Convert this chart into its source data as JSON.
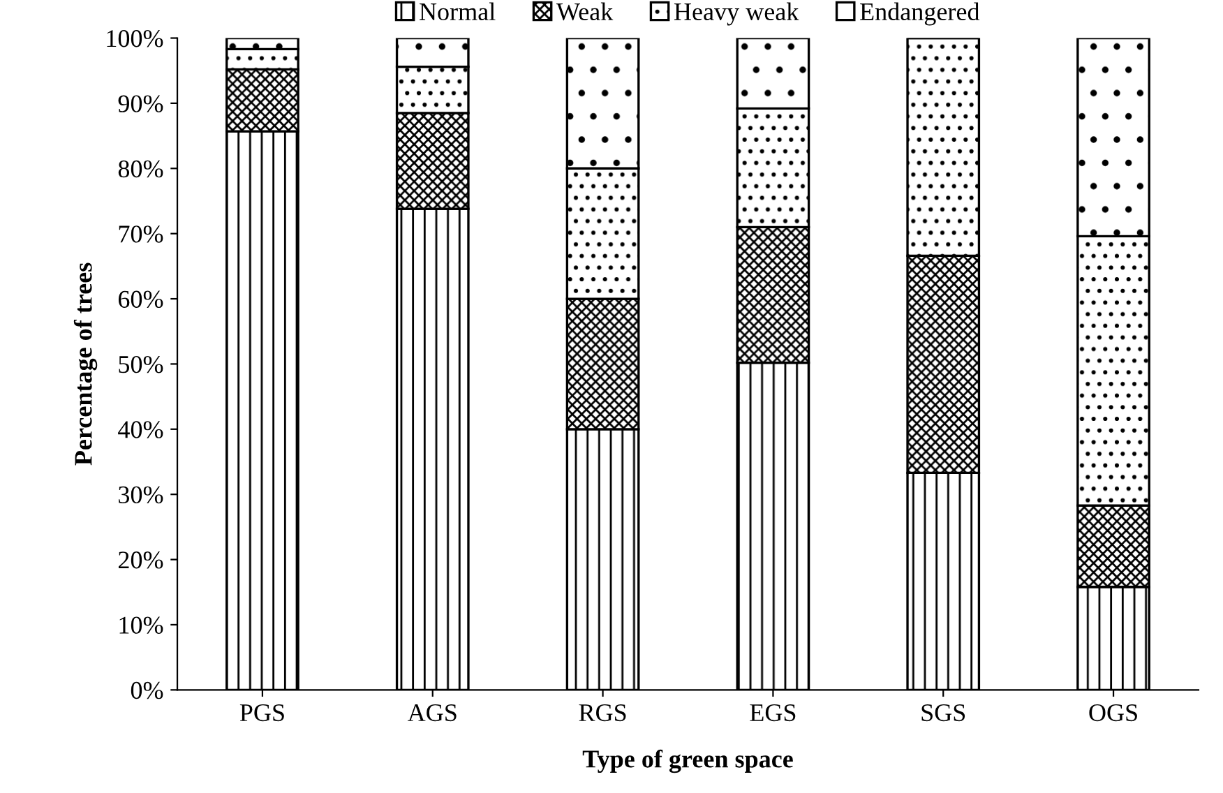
{
  "chart_data": {
    "type": "bar",
    "stacked": true,
    "xlabel": "Type of green space",
    "ylabel": "Percentage of trees",
    "categories": [
      "PGS",
      "AGS",
      "RGS",
      "EGS",
      "SGS",
      "OGS"
    ],
    "series": [
      {
        "name": "Normal",
        "color": "#000000",
        "values": [
          85.7,
          73.8,
          40,
          50.2,
          33.3,
          15.8
        ]
      },
      {
        "name": "Weak",
        "color": "#000000",
        "values": [
          9.5,
          14.7,
          20,
          20.8,
          33.3,
          12.5
        ]
      },
      {
        "name": "Heavy weak",
        "color": "#000000",
        "values": [
          3.1,
          7.1,
          20,
          18.2,
          33.4,
          41.3
        ]
      },
      {
        "name": "Endangered",
        "color": "#000000",
        "values": [
          1.7,
          4.4,
          20,
          10.8,
          0,
          30.4
        ]
      }
    ],
    "ylim": [
      0,
      100
    ],
    "yticks": [
      {
        "value": 0,
        "label": "0%"
      },
      {
        "value": 10,
        "label": "10%"
      },
      {
        "value": 20,
        "label": "20%"
      },
      {
        "value": 30,
        "label": "30%"
      },
      {
        "value": 40,
        "label": "40%"
      },
      {
        "value": 50,
        "label": "50%"
      },
      {
        "value": 60,
        "label": "60%"
      },
      {
        "value": 70,
        "label": "70%"
      },
      {
        "value": 80,
        "label": "80%"
      },
      {
        "value": 90,
        "label": "90%"
      },
      {
        "value": 100,
        "label": "100%"
      }
    ],
    "legend": "top"
  }
}
